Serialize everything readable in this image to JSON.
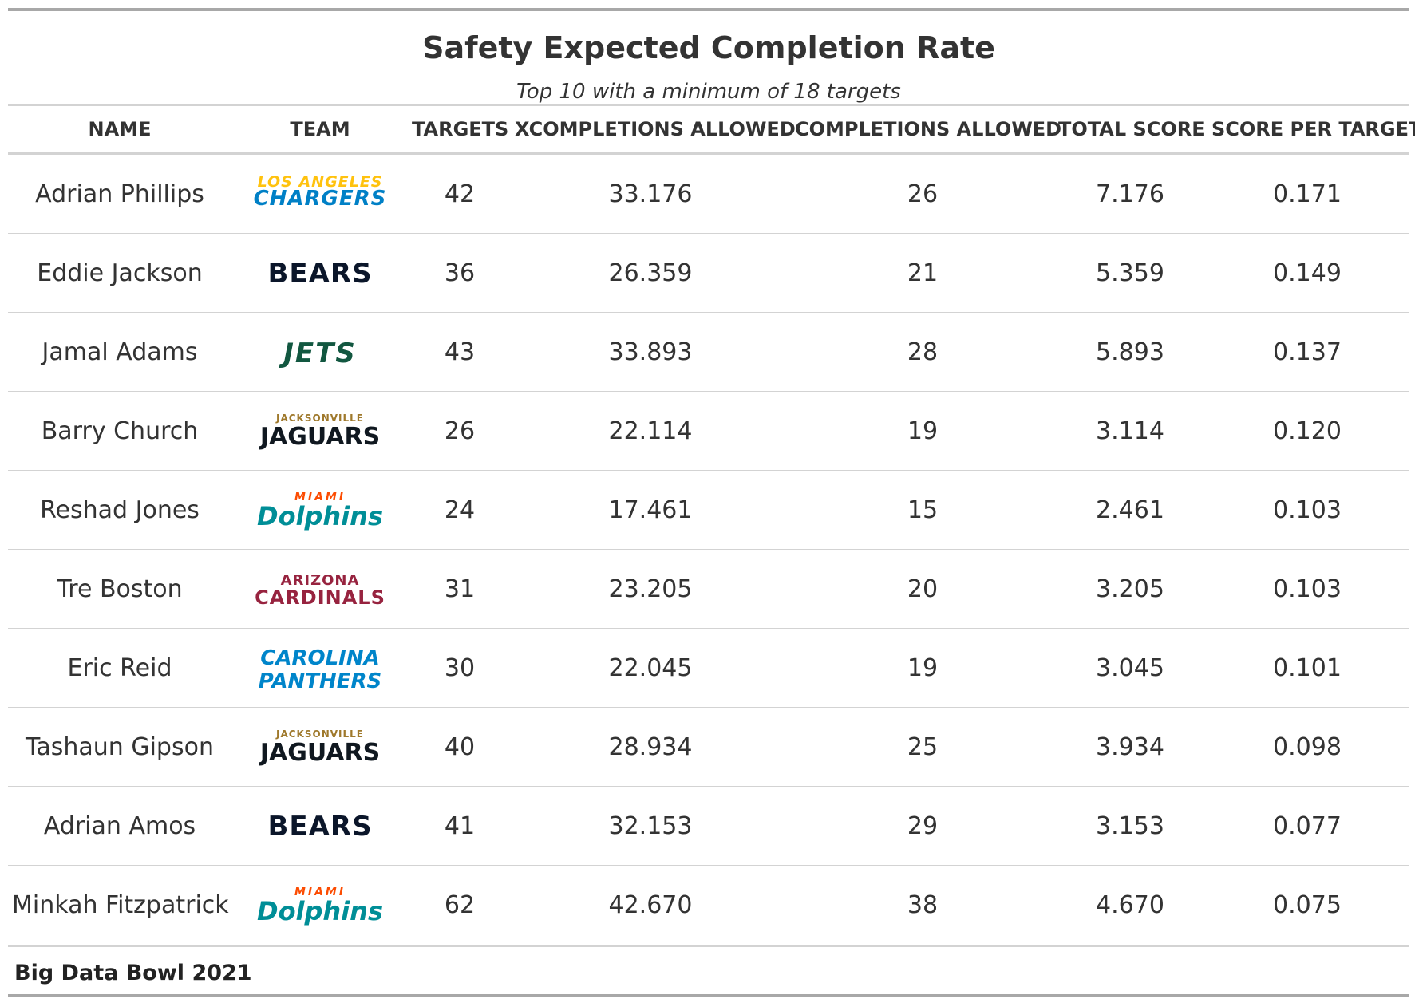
{
  "title": "Safety Expected Completion Rate",
  "subtitle": "Top 10 with a minimum of 18 targets",
  "source": "Big Data Bowl 2021",
  "chart_data": {
    "type": "table",
    "columns": [
      "NAME",
      "TEAM",
      "TARGETS",
      "XCOMPLETIONS ALLOWED",
      "COMPLETIONS ALLOWED",
      "TOTAL SCORE",
      "SCORE PER TARGET"
    ],
    "rows": [
      {
        "name": "Adrian Phillips",
        "team": "LAC",
        "targets": "42",
        "xcompletions": "33.176",
        "completions": "26",
        "total": "7.176",
        "per_target": "0.171"
      },
      {
        "name": "Eddie Jackson",
        "team": "CHI",
        "targets": "36",
        "xcompletions": "26.359",
        "completions": "21",
        "total": "5.359",
        "per_target": "0.149"
      },
      {
        "name": "Jamal Adams",
        "team": "NYJ",
        "targets": "43",
        "xcompletions": "33.893",
        "completions": "28",
        "total": "5.893",
        "per_target": "0.137"
      },
      {
        "name": "Barry Church",
        "team": "JAX",
        "targets": "26",
        "xcompletions": "22.114",
        "completions": "19",
        "total": "3.114",
        "per_target": "0.120"
      },
      {
        "name": "Reshad Jones",
        "team": "MIA",
        "targets": "24",
        "xcompletions": "17.461",
        "completions": "15",
        "total": "2.461",
        "per_target": "0.103"
      },
      {
        "name": "Tre Boston",
        "team": "ARI",
        "targets": "31",
        "xcompletions": "23.205",
        "completions": "20",
        "total": "3.205",
        "per_target": "0.103"
      },
      {
        "name": "Eric Reid",
        "team": "CAR",
        "targets": "30",
        "xcompletions": "22.045",
        "completions": "19",
        "total": "3.045",
        "per_target": "0.101"
      },
      {
        "name": "Tashaun Gipson",
        "team": "JAX",
        "targets": "40",
        "xcompletions": "28.934",
        "completions": "25",
        "total": "3.934",
        "per_target": "0.098"
      },
      {
        "name": "Adrian Amos",
        "team": "CHI",
        "targets": "41",
        "xcompletions": "32.153",
        "completions": "29",
        "total": "3.153",
        "per_target": "0.077"
      },
      {
        "name": "Minkah Fitzpatrick",
        "team": "MIA",
        "targets": "62",
        "xcompletions": "42.670",
        "completions": "38",
        "total": "4.670",
        "per_target": "0.075"
      }
    ]
  },
  "team_logos": {
    "LAC": {
      "icon": "chargers-logo-icon",
      "lines": [
        "LOS ANGELES",
        "CHARGERS"
      ],
      "colors": [
        "#ffc20e",
        "#0080c6"
      ]
    },
    "CHI": {
      "icon": "bears-logo-icon",
      "lines": [
        "BEARS"
      ],
      "colors": [
        "#0b162a"
      ]
    },
    "NYJ": {
      "icon": "jets-logo-icon",
      "lines": [
        "JETS"
      ],
      "colors": [
        "#125740"
      ]
    },
    "JAX": {
      "icon": "jaguars-logo-icon",
      "lines": [
        "JACKSONVILLE",
        "JAGUARS"
      ],
      "colors": [
        "#9f792c",
        "#101820"
      ]
    },
    "MIA": {
      "icon": "dolphins-logo-icon",
      "lines": [
        "MIAMI",
        "Dolphins"
      ],
      "colors": [
        "#fc4c02",
        "#008e97"
      ]
    },
    "ARI": {
      "icon": "cardinals-logo-icon",
      "lines": [
        "ARIZONA",
        "CARDINALS"
      ],
      "colors": [
        "#97233f",
        "#97233f"
      ]
    },
    "CAR": {
      "icon": "panthers-logo-icon",
      "lines": [
        "CAROLINA",
        "PANTHERS"
      ],
      "colors": [
        "#0085ca",
        "#0085ca"
      ]
    }
  }
}
